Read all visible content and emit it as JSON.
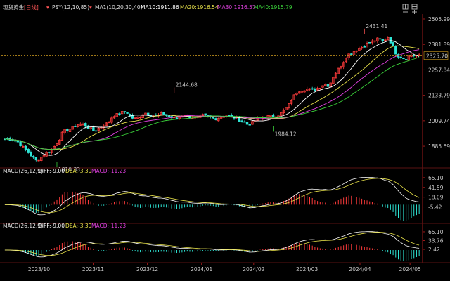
{
  "header": {
    "instrument": "现货黄金",
    "period": "[日线]",
    "psy": "PSY(12,10,85)",
    "ma1": "MA1(10,20,30,40)",
    "ma10": "MA10:1911.86",
    "ma20": "MA20:1916.54",
    "ma30": "MA30:1916.57",
    "ma40": "MA40:1915.79"
  },
  "macd_panels": [
    {
      "name": "MACD(26,12,9)",
      "diff": "DIFF:-9.00",
      "dea": "DEA:-3.39",
      "macd": "MACD:-11.23",
      "ticks": [
        "65.10",
        "41.59",
        "18.09",
        "-5.42"
      ],
      "tick_values": [
        65.1,
        41.59,
        18.09,
        -5.42
      ]
    },
    {
      "name": "MACD(26,12,9)",
      "diff": "DIFF:-9.00",
      "dea": "DEA:-3.39",
      "macd": "MACD:-11.23",
      "ticks": [
        "65.10",
        "33.76",
        "2.42"
      ],
      "tick_values": [
        65.1,
        33.76,
        2.42
      ]
    }
  ],
  "annotations": {
    "high1": "2144.68",
    "high2": "2431.41",
    "low1": "1810.33",
    "low2": "1984.12",
    "current": "2325.70"
  },
  "colors": {
    "up": "#ff3b3b",
    "down": "#2ee6d6",
    "ma10": "#ffffff",
    "ma20": "#e8e24a",
    "ma30": "#e040e0",
    "ma40": "#3ad13a",
    "dea": "#e8e24a",
    "diff": "#ffffff"
  },
  "chart_data": {
    "type": "candlestick",
    "y_ticks": [
      "2505.99",
      "2381.89",
      "2257.84",
      "2133.79",
      "2009.74",
      "1885.69"
    ],
    "y_tick_values": [
      2505.99,
      2381.89,
      2257.84,
      2133.79,
      2009.74,
      1885.69
    ],
    "ylim": [
      1790,
      2530
    ],
    "x_ticks": [
      "2023/10",
      "2023/11",
      "2023/12",
      "2024/01",
      "2024/02",
      "2024/03",
      "2024/04",
      "2024/05"
    ],
    "key_points": [
      {
        "label": "2144.68",
        "value": 2144.68
      },
      {
        "label": "2431.41",
        "value": 2431.41
      },
      {
        "label": "1810.33",
        "value": 1810.33
      },
      {
        "label": "1984.12",
        "value": 1984.12
      }
    ],
    "current_price": 2325.7,
    "close_anchors": [
      1920,
      1921,
      1915,
      1905,
      1880,
      1860,
      1835,
      1815,
      1830,
      1850,
      1860,
      1885,
      1915,
      1960,
      1965,
      1975,
      1990,
      1995,
      1985,
      1970,
      1960,
      1975,
      1990,
      2000,
      2035,
      2040,
      2050,
      2055,
      2025,
      2020,
      2030,
      2050,
      2040,
      2035,
      2035,
      2045,
      2035,
      2025,
      2020,
      2030,
      2040,
      2028,
      2025,
      2022,
      2035,
      2030,
      2025,
      2020,
      2028,
      2036,
      2030,
      2025,
      2015,
      2005,
      1990,
      2000,
      2020,
      2024,
      2030,
      2032,
      2035,
      2040,
      2060,
      2085,
      2125,
      2155,
      2160,
      2165,
      2160,
      2162,
      2175,
      2190,
      2180,
      2230,
      2260,
      2290,
      2330,
      2340,
      2355,
      2365,
      2380,
      2390,
      2400,
      2410,
      2395,
      2420,
      2380,
      2330,
      2320,
      2310,
      2330,
      2330,
      2326
    ]
  }
}
